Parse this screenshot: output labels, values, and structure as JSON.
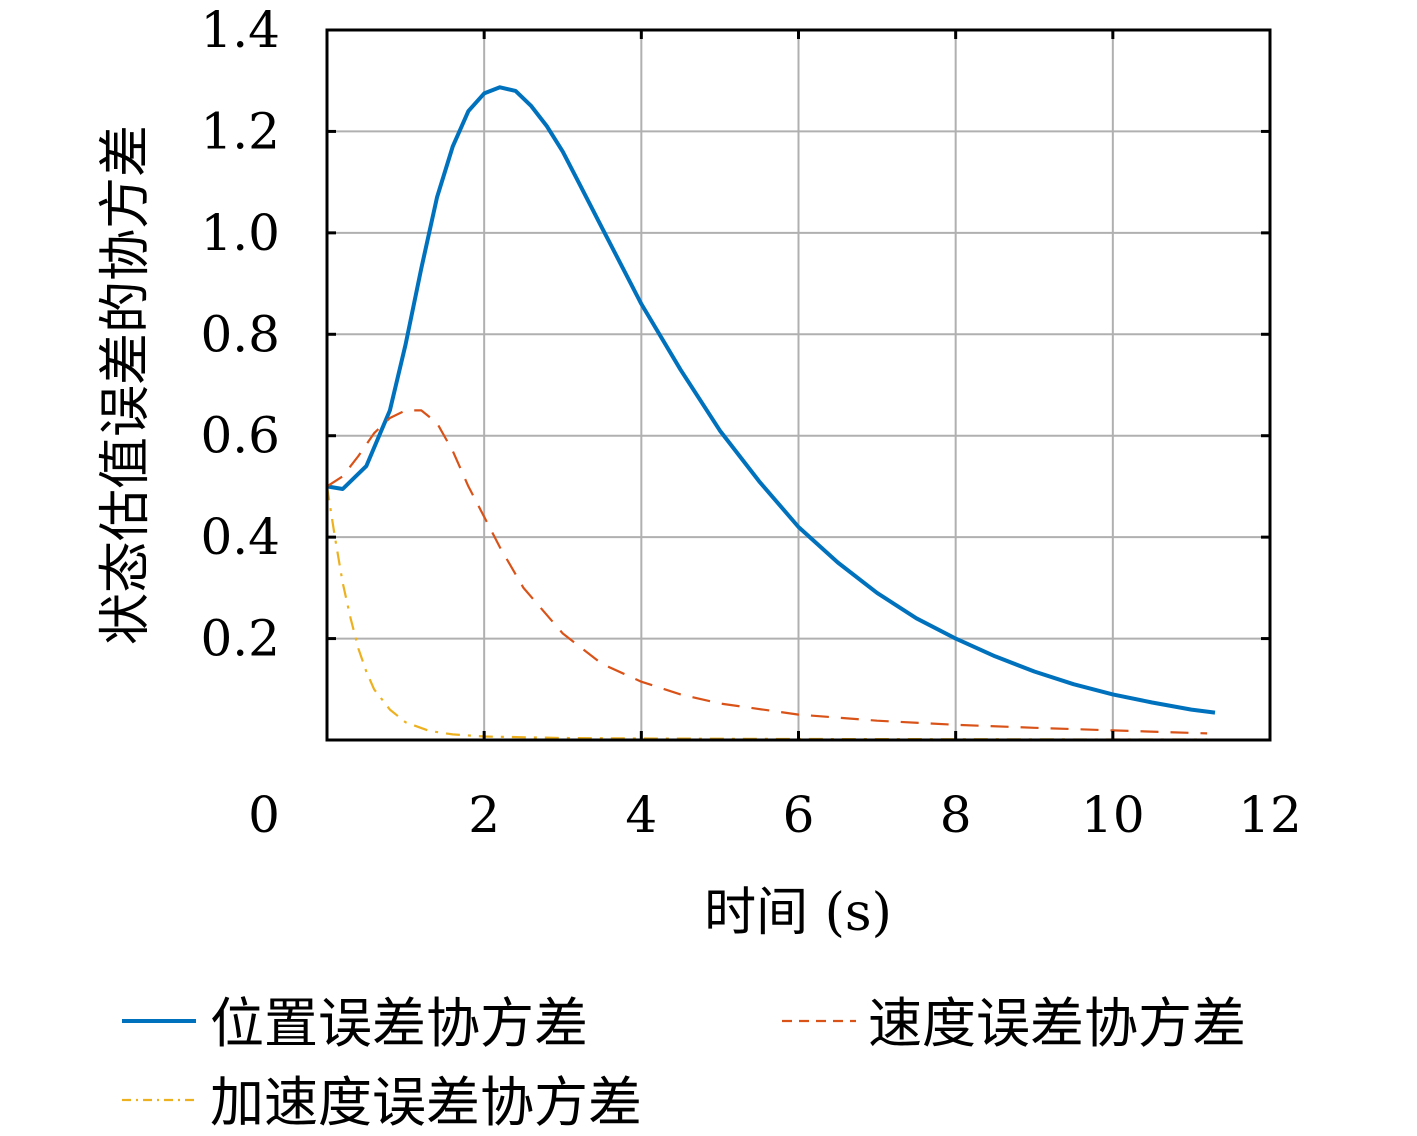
{
  "chart_data": {
    "type": "line",
    "xlabel": "时间 (s)",
    "ylabel": "状态估值误差的协方差",
    "xlim": [
      0,
      12
    ],
    "ylim": [
      0,
      1.4
    ],
    "xticks": [
      0,
      2,
      4,
      6,
      8,
      10,
      12
    ],
    "yticks": [
      0.2,
      0.4,
      0.6,
      0.8,
      1.0,
      1.2,
      1.4
    ],
    "xtick_labels": [
      "0",
      "2",
      "4",
      "6",
      "8",
      "10",
      "12"
    ],
    "ytick_labels": [
      "0.2",
      "0.4",
      "0.6",
      "0.8",
      "1.0",
      "1.2",
      "1.4"
    ],
    "grid": true,
    "legend_position": "bottom",
    "series": [
      {
        "name": "位置误差协方差",
        "color": "#0072BD",
        "style": "solid",
        "points": [
          [
            0,
            0.5
          ],
          [
            0.2,
            0.495
          ],
          [
            0.5,
            0.54
          ],
          [
            0.8,
            0.65
          ],
          [
            1.0,
            0.78
          ],
          [
            1.2,
            0.93
          ],
          [
            1.4,
            1.07
          ],
          [
            1.6,
            1.17
          ],
          [
            1.8,
            1.24
          ],
          [
            2.0,
            1.275
          ],
          [
            2.2,
            1.287
          ],
          [
            2.4,
            1.28
          ],
          [
            2.6,
            1.25
          ],
          [
            2.8,
            1.21
          ],
          [
            3.0,
            1.16
          ],
          [
            3.2,
            1.1
          ],
          [
            3.5,
            1.01
          ],
          [
            4.0,
            0.86
          ],
          [
            4.5,
            0.73
          ],
          [
            5.0,
            0.61
          ],
          [
            5.5,
            0.51
          ],
          [
            6.0,
            0.42
          ],
          [
            6.5,
            0.35
          ],
          [
            7.0,
            0.29
          ],
          [
            7.5,
            0.24
          ],
          [
            8.0,
            0.2
          ],
          [
            8.5,
            0.165
          ],
          [
            9.0,
            0.135
          ],
          [
            9.5,
            0.11
          ],
          [
            10.0,
            0.09
          ],
          [
            10.5,
            0.074
          ],
          [
            11.0,
            0.06
          ],
          [
            11.3,
            0.054
          ]
        ]
      },
      {
        "name": "速度误差协方差",
        "color": "#D95319",
        "style": "dashed",
        "points": [
          [
            0,
            0.5
          ],
          [
            0.2,
            0.52
          ],
          [
            0.4,
            0.56
          ],
          [
            0.6,
            0.605
          ],
          [
            0.8,
            0.635
          ],
          [
            1.0,
            0.65
          ],
          [
            1.2,
            0.65
          ],
          [
            1.4,
            0.625
          ],
          [
            1.6,
            0.57
          ],
          [
            1.8,
            0.5
          ],
          [
            2.0,
            0.44
          ],
          [
            2.2,
            0.38
          ],
          [
            2.5,
            0.3
          ],
          [
            3.0,
            0.21
          ],
          [
            3.5,
            0.15
          ],
          [
            4.0,
            0.115
          ],
          [
            4.5,
            0.09
          ],
          [
            5.0,
            0.072
          ],
          [
            6.0,
            0.05
          ],
          [
            7.0,
            0.038
          ],
          [
            8.0,
            0.03
          ],
          [
            9.0,
            0.024
          ],
          [
            10.0,
            0.019
          ],
          [
            11.0,
            0.014
          ],
          [
            11.2,
            0.013
          ]
        ]
      },
      {
        "name": "加速度误差协方差",
        "color": "#EDB120",
        "style": "dashdot",
        "points": [
          [
            0,
            0.5
          ],
          [
            0.1,
            0.4
          ],
          [
            0.2,
            0.31
          ],
          [
            0.3,
            0.24
          ],
          [
            0.4,
            0.18
          ],
          [
            0.5,
            0.135
          ],
          [
            0.6,
            0.1
          ],
          [
            0.8,
            0.06
          ],
          [
            1.0,
            0.035
          ],
          [
            1.3,
            0.018
          ],
          [
            1.6,
            0.011
          ],
          [
            2.0,
            0.007
          ],
          [
            3.0,
            0.004
          ],
          [
            4.0,
            0.003
          ],
          [
            6.0,
            0.002
          ],
          [
            8.0,
            0.0015
          ],
          [
            10.0,
            0.001
          ],
          [
            11.2,
            0.001
          ]
        ]
      }
    ]
  }
}
